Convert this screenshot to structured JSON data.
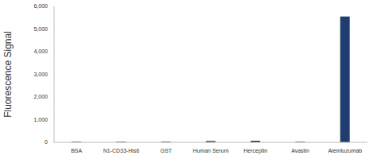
{
  "chart_data": {
    "type": "bar",
    "ylabel": "Fluorescence Signal",
    "categories": [
      "BSA",
      "N1-CD33-His6",
      "GST",
      "Human Serum",
      "Herceptin",
      "Avastin",
      "Alemtuzumab"
    ],
    "values": [
      30,
      30,
      35,
      60,
      70,
      30,
      5550
    ],
    "color": "#1f3d6e",
    "ylim": [
      0,
      6000
    ],
    "yticks": [
      0,
      {
        "value": 1000,
        "label": "1,000"
      },
      {
        "value": 2000,
        "label": "2,000"
      },
      {
        "value": 3000,
        "label": "3,000"
      },
      {
        "value": 4000,
        "label": "4,000"
      },
      {
        "value": 5000,
        "label": "5,000"
      },
      {
        "value": 6000,
        "label": "6,000"
      }
    ],
    "grid": false
  }
}
